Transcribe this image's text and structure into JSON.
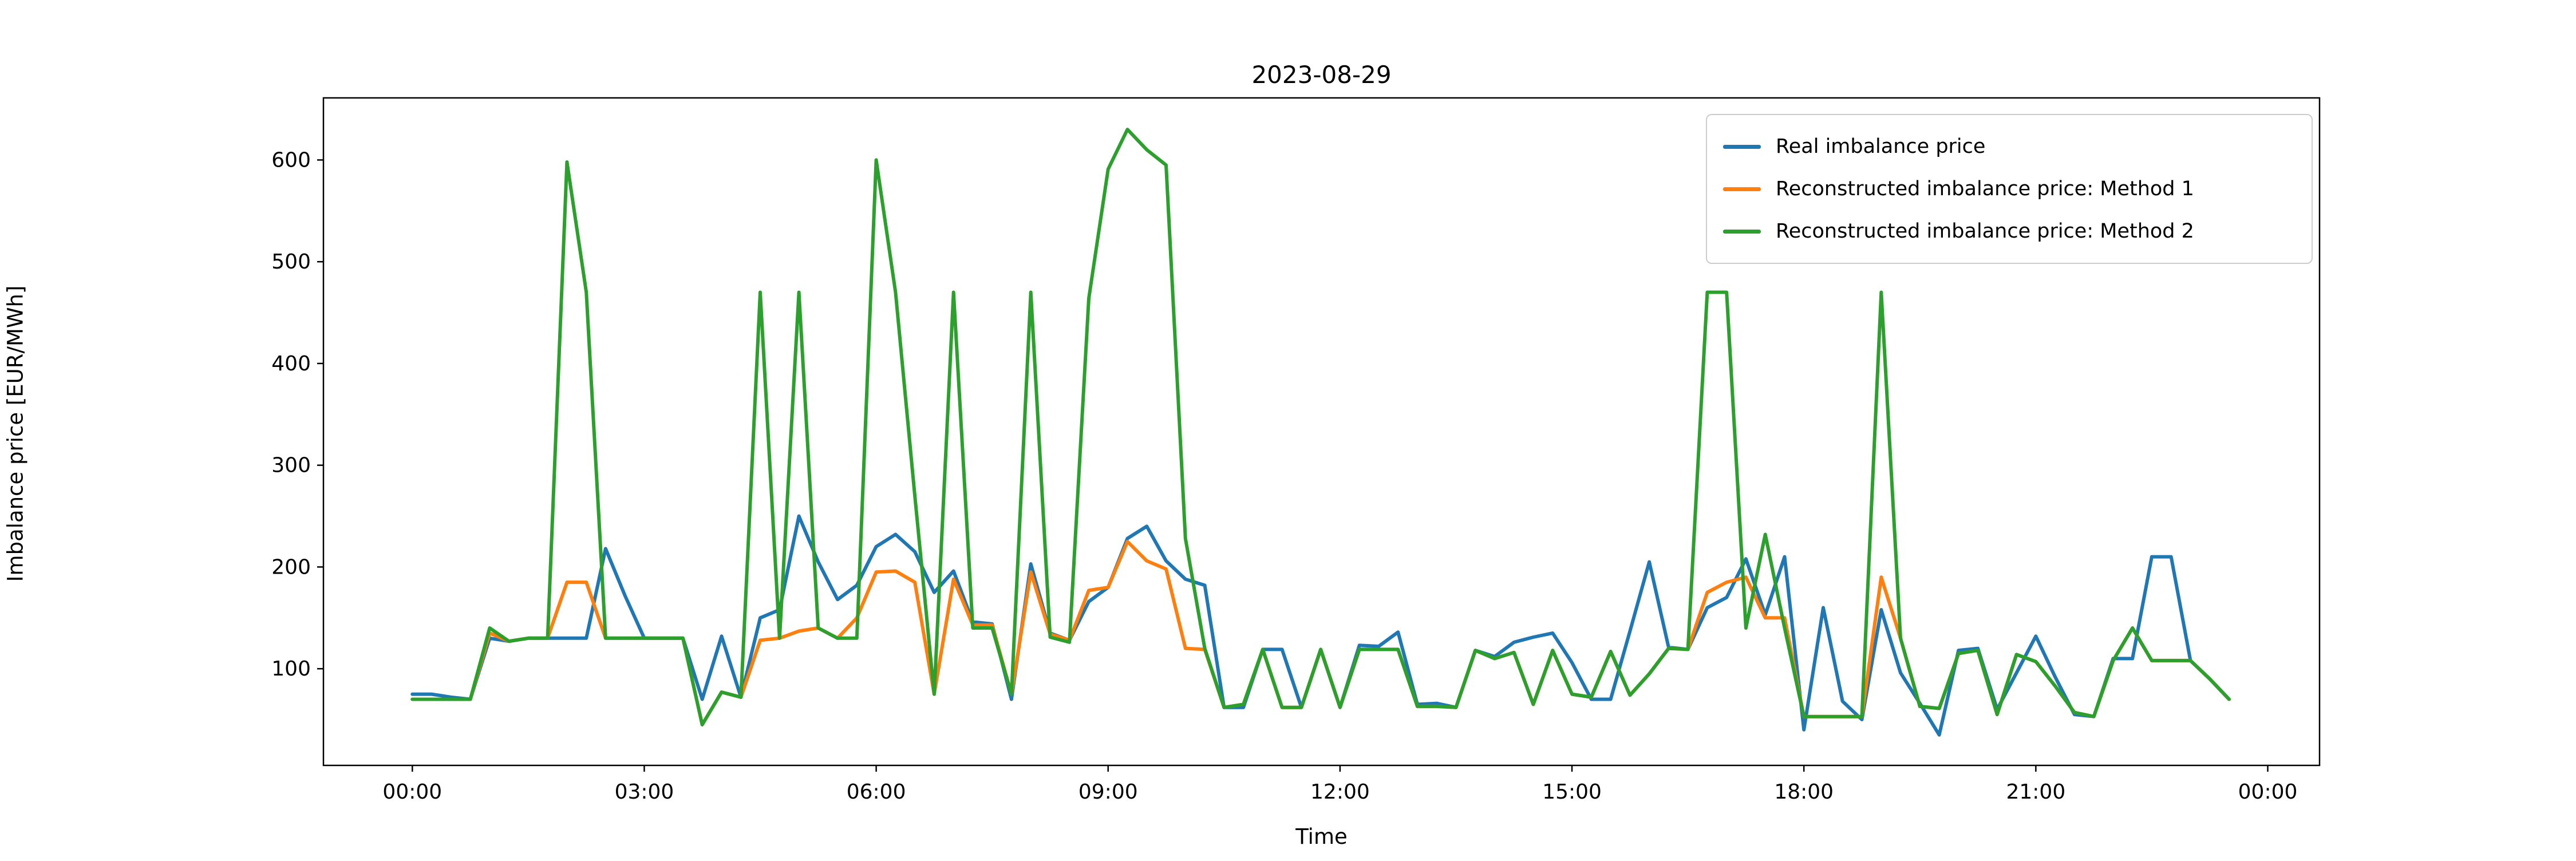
{
  "figure": {
    "title": "2023-08-29",
    "background_color": "#ffffff",
    "spine_color": "#000000"
  },
  "chart_data": {
    "type": "line",
    "title": "2023-08-29",
    "xlabel": "Time",
    "ylabel": "Imbalance price [EUR/MWh]",
    "grid": false,
    "legend_position": "upper right",
    "x_tick_labels": [
      "00:00",
      "03:00",
      "06:00",
      "09:00",
      "12:00",
      "15:00",
      "18:00",
      "21:00",
      "00:00"
    ],
    "x_tick_hours": [
      0,
      3,
      6,
      9,
      12,
      15,
      18,
      21,
      24
    ],
    "y_ticks": [
      100,
      200,
      300,
      400,
      500,
      600
    ],
    "xlim_hours": [
      -1.15,
      24.67
    ],
    "ylim": [
      5,
      661
    ],
    "x": [
      "00:00",
      "00:15",
      "00:30",
      "00:45",
      "01:00",
      "01:15",
      "01:30",
      "01:45",
      "02:00",
      "02:15",
      "02:30",
      "02:45",
      "03:00",
      "03:15",
      "03:30",
      "03:45",
      "04:00",
      "04:15",
      "04:30",
      "04:45",
      "05:00",
      "05:15",
      "05:30",
      "05:45",
      "06:00",
      "06:15",
      "06:30",
      "06:45",
      "07:00",
      "07:15",
      "07:30",
      "07:45",
      "08:00",
      "08:15",
      "08:30",
      "08:45",
      "09:00",
      "09:15",
      "09:30",
      "09:45",
      "10:00",
      "10:15",
      "10:30",
      "10:45",
      "11:00",
      "11:15",
      "11:30",
      "11:45",
      "12:00",
      "12:15",
      "12:30",
      "12:45",
      "13:00",
      "13:15",
      "13:30",
      "13:45",
      "14:00",
      "14:15",
      "14:30",
      "14:45",
      "15:00",
      "15:15",
      "15:30",
      "15:45",
      "16:00",
      "16:15",
      "16:30",
      "16:45",
      "17:00",
      "17:15",
      "17:30",
      "17:45",
      "18:00",
      "18:15",
      "18:30",
      "18:45",
      "19:00",
      "19:15",
      "19:30",
      "19:45",
      "20:00",
      "20:15",
      "20:30",
      "20:45",
      "21:00",
      "21:15",
      "21:30",
      "21:45",
      "22:00",
      "22:15",
      "22:30",
      "22:45",
      "23:00",
      "23:15",
      "23:30"
    ],
    "series": [
      {
        "name": "Real imbalance price",
        "color": "#1f77b4",
        "values": [
          75,
          75,
          72,
          70,
          130,
          127,
          130,
          130,
          130,
          130,
          218,
          172,
          130,
          130,
          130,
          70,
          132,
          72,
          150,
          158,
          250,
          205,
          168,
          182,
          220,
          232,
          215,
          175,
          196,
          146,
          144,
          70,
          203,
          135,
          128,
          166,
          180,
          228,
          240,
          206,
          188,
          182,
          62,
          62,
          119,
          119,
          62,
          119,
          62,
          123,
          122,
          136,
          65,
          66,
          62,
          118,
          112,
          126,
          131,
          135,
          106,
          70,
          70,
          137,
          205,
          121,
          119,
          160,
          170,
          208,
          153,
          210,
          40,
          160,
          68,
          50,
          158,
          96,
          66,
          35,
          118,
          120,
          60,
          96,
          132,
          92,
          55,
          53,
          110,
          110,
          210,
          210,
          108,
          90,
          70
        ]
      },
      {
        "name": "Reconstructed imbalance price: Method 1",
        "color": "#ff7f0e",
        "values": [
          70,
          70,
          70,
          70,
          135,
          127,
          130,
          130,
          185,
          185,
          130,
          130,
          130,
          130,
          130,
          45,
          77,
          72,
          128,
          130,
          137,
          140,
          130,
          150,
          195,
          196,
          185,
          75,
          188,
          143,
          143,
          75,
          195,
          134,
          128,
          177,
          180,
          225,
          206,
          198,
          120,
          119,
          62,
          65,
          119,
          62,
          62,
          119,
          62,
          119,
          119,
          119,
          63,
          63,
          62,
          118,
          110,
          116,
          65,
          118,
          75,
          72,
          117,
          74,
          95,
          120,
          119,
          175,
          185,
          190,
          150,
          150,
          53,
          53,
          53,
          53,
          190,
          130,
          63,
          61,
          115,
          118,
          55,
          114,
          107,
          83,
          57,
          53,
          108,
          140,
          108,
          108,
          108,
          90,
          70
        ]
      },
      {
        "name": "Reconstructed imbalance price: Method 2",
        "color": "#2ca02c",
        "values": [
          70,
          70,
          70,
          70,
          140,
          127,
          130,
          130,
          598,
          470,
          130,
          130,
          130,
          130,
          130,
          45,
          77,
          72,
          470,
          130,
          470,
          140,
          130,
          130,
          600,
          470,
          270,
          75,
          470,
          140,
          140,
          75,
          470,
          131,
          126,
          464,
          591,
          630,
          610,
          595,
          228,
          120,
          62,
          65,
          119,
          62,
          62,
          119,
          62,
          119,
          119,
          119,
          63,
          63,
          62,
          118,
          110,
          116,
          65,
          118,
          75,
          72,
          117,
          74,
          95,
          120,
          119,
          470,
          470,
          140,
          232,
          140,
          53,
          53,
          53,
          53,
          470,
          130,
          63,
          61,
          115,
          118,
          55,
          114,
          107,
          83,
          57,
          53,
          108,
          140,
          108,
          108,
          108,
          90,
          70
        ]
      }
    ]
  }
}
